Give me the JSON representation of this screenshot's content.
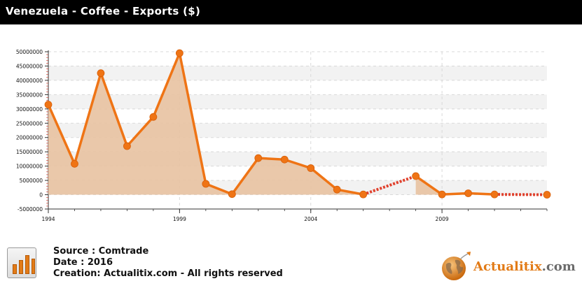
{
  "header": {
    "title": "Venezuela - Coffee - Exports ($)"
  },
  "colors": {
    "line": "#ef7415",
    "fill": "#e8c2a1",
    "dotted": "#e0402c",
    "band": "#f2f2f2"
  },
  "chart_data": {
    "type": "area",
    "title": "Venezuela - Coffee - Exports ($)",
    "xlabel": "",
    "ylabel": "",
    "xlim": [
      1994,
      2013
    ],
    "ylim": [
      -5000000,
      50000000
    ],
    "grid": true,
    "y_ticks": [
      -5000000,
      0,
      5000000,
      10000000,
      15000000,
      20000000,
      25000000,
      30000000,
      35000000,
      40000000,
      45000000,
      50000000
    ],
    "y_tick_labels": [
      "-5000000",
      "0",
      "5000000",
      "10000000",
      "15000000",
      "20000000",
      "25000000",
      "30000000",
      "35000000",
      "40000000",
      "45000000",
      "50000000"
    ],
    "x_ticks": [
      1994,
      1999,
      2004,
      2009
    ],
    "x_tick_labels": [
      "1994",
      "1999",
      "2004",
      "2009"
    ],
    "series": [
      {
        "x": [
          1994,
          1995,
          1996,
          1997,
          1998,
          1999,
          2000,
          2001,
          2002,
          2003,
          2004,
          2005,
          2006,
          2008,
          2009,
          2010,
          2011,
          2013
        ],
        "values": [
          31500000,
          10800000,
          42500000,
          17000000,
          27200000,
          49500000,
          3800000,
          200000,
          12800000,
          12300000,
          9300000,
          1800000,
          100000,
          6500000,
          100000,
          500000,
          100000,
          0
        ]
      }
    ],
    "gaps": [
      [
        2006,
        2008
      ],
      [
        2011,
        2013
      ]
    ]
  },
  "footer": {
    "source": "Source : Comtrade",
    "date": "Date : 2016",
    "creation": "Creation: Actualitix.com - All rights reserved"
  },
  "logo": {
    "name": "Actualitix",
    "suffix": ".com"
  }
}
